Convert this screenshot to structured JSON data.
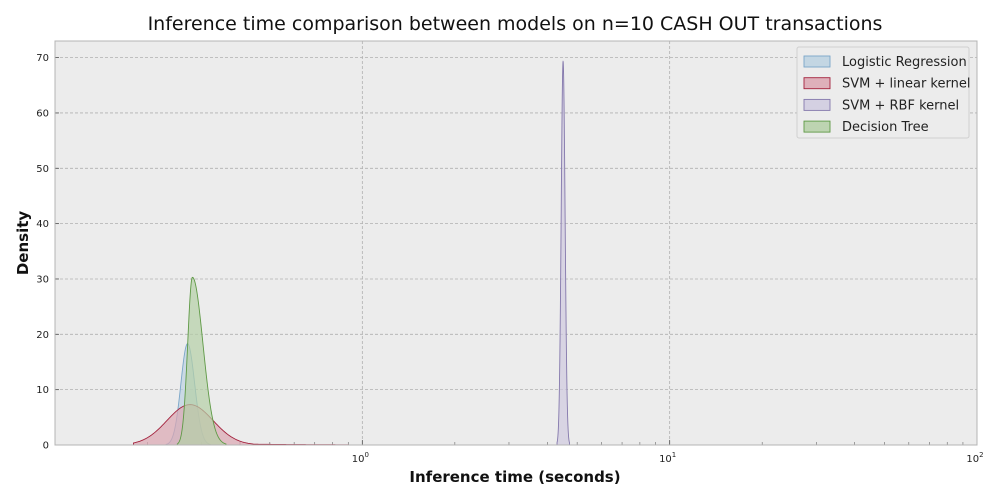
{
  "chart_data": {
    "type": "area",
    "title": "Inference time comparison between models on n=10 CASH OUT transactions",
    "xlabel": "Inference time (seconds)",
    "ylabel": "Density",
    "x_scale": "log",
    "xlim": [
      0.1,
      100
    ],
    "ylim": [
      0,
      73
    ],
    "x_ticks": [
      {
        "base": "10",
        "exp": "0",
        "value": 1
      },
      {
        "base": "10",
        "exp": "1",
        "value": 10
      },
      {
        "base": "10",
        "exp": "2",
        "value": 100
      }
    ],
    "y_ticks": [
      0,
      10,
      20,
      30,
      40,
      50,
      60,
      70
    ],
    "grid": true,
    "legend_position": "top-right",
    "series": [
      {
        "name": "Logistic Regression",
        "color": "#7aa6c8",
        "fill": "#bcd2e2",
        "peak_x": 0.27,
        "peak_density": 18.3,
        "x_range": [
          0.23,
          0.32
        ]
      },
      {
        "name": "SVM + linear kernel",
        "color": "#a3223d",
        "fill": "#dca6b2",
        "peak_x": 0.275,
        "peak_density": 7.3,
        "x_range": [
          0.18,
          0.9
        ]
      },
      {
        "name": "SVM + RBF kernel",
        "color": "#8478ac",
        "fill": "#d0cbe0",
        "peak_x": 4.5,
        "peak_density": 69.3,
        "x_range": [
          4.3,
          4.72
        ]
      },
      {
        "name": "Decision Tree",
        "color": "#5e9945",
        "fill": "#b5d0a7",
        "peak_x": 0.28,
        "peak_density": 30.3,
        "x_range": [
          0.25,
          0.36
        ]
      }
    ]
  }
}
